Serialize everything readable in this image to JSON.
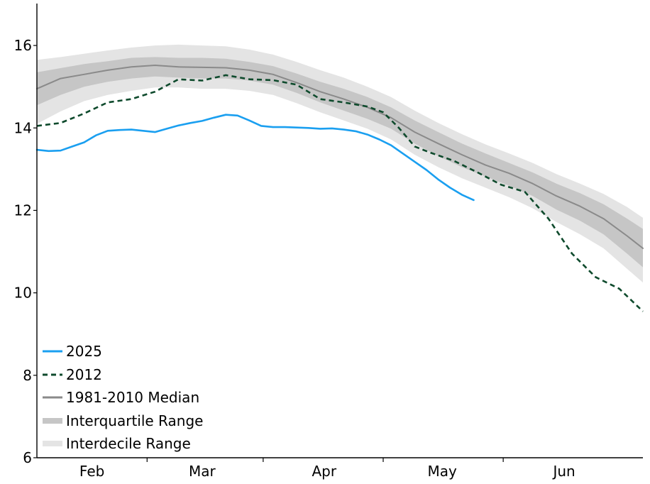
{
  "chart_data": {
    "type": "line",
    "title": "",
    "xlabel": "",
    "ylabel": "",
    "xlim": [
      0,
      154
    ],
    "ylim": [
      6,
      17
    ],
    "grid": false,
    "legend_position": "bottom-left",
    "x_ticks": [
      {
        "label": "Feb",
        "value": 14
      },
      {
        "label": "Mar",
        "value": 42
      },
      {
        "label": "Apr",
        "value": 73
      },
      {
        "label": "May",
        "value": 103
      },
      {
        "label": "Jun",
        "value": 134
      }
    ],
    "y_ticks": [
      6,
      8,
      10,
      12,
      14,
      16
    ],
    "colors": {
      "2025": "#1a9ff0",
      "2012": "#0e4a2c",
      "median": "#8a8a8a",
      "interquartile": "#c6c6c6",
      "interdecile": "#e4e4e4"
    },
    "series": [
      {
        "name": "2025",
        "style": "solid",
        "x": [
          0,
          3,
          6,
          9,
          12,
          15,
          18,
          21,
          24,
          27,
          30,
          33,
          36,
          39,
          42,
          45,
          48,
          51,
          54,
          57,
          60,
          63,
          66,
          69,
          72,
          75,
          78,
          81,
          84,
          87,
          90,
          93,
          96,
          99,
          102,
          105,
          108,
          111
        ],
        "y": [
          13.47,
          13.44,
          13.45,
          13.55,
          13.65,
          13.82,
          13.93,
          13.95,
          13.96,
          13.93,
          13.9,
          13.98,
          14.06,
          14.12,
          14.17,
          14.25,
          14.32,
          14.3,
          14.18,
          14.05,
          14.02,
          14.02,
          14.01,
          14.0,
          13.98,
          13.99,
          13.96,
          13.92,
          13.84,
          13.72,
          13.58,
          13.38,
          13.18,
          12.98,
          12.75,
          12.55,
          12.38,
          12.25
        ]
      },
      {
        "name": "2012",
        "style": "dashed",
        "x": [
          0,
          6,
          12,
          18,
          24,
          30,
          36,
          42,
          48,
          54,
          60,
          66,
          72,
          78,
          84,
          88,
          92,
          96,
          100,
          106,
          112,
          118,
          124,
          130,
          136,
          142,
          148,
          154
        ],
        "y": [
          14.05,
          14.12,
          14.35,
          14.62,
          14.7,
          14.88,
          15.18,
          15.15,
          15.28,
          15.18,
          15.16,
          15.05,
          14.7,
          14.62,
          14.52,
          14.38,
          14.0,
          13.55,
          13.4,
          13.2,
          12.92,
          12.62,
          12.45,
          11.8,
          10.95,
          10.38,
          10.1,
          9.55
        ]
      },
      {
        "name": "1981-2010 Median",
        "style": "solid",
        "x": [
          0,
          6,
          12,
          18,
          24,
          30,
          36,
          42,
          48,
          54,
          60,
          66,
          72,
          78,
          84,
          90,
          96,
          102,
          108,
          114,
          120,
          126,
          132,
          138,
          144,
          150,
          154
        ],
        "y": [
          14.95,
          15.2,
          15.3,
          15.4,
          15.48,
          15.52,
          15.48,
          15.47,
          15.46,
          15.4,
          15.3,
          15.1,
          14.88,
          14.7,
          14.5,
          14.25,
          13.9,
          13.62,
          13.35,
          13.1,
          12.9,
          12.65,
          12.35,
          12.1,
          11.8,
          11.38,
          11.08
        ]
      }
    ],
    "bands": [
      {
        "name": "Interquartile Range",
        "x": [
          0,
          6,
          12,
          18,
          24,
          30,
          36,
          42,
          48,
          54,
          60,
          66,
          72,
          78,
          84,
          90,
          96,
          102,
          108,
          114,
          120,
          126,
          132,
          138,
          144,
          150,
          154
        ],
        "upper": [
          15.35,
          15.45,
          15.55,
          15.62,
          15.7,
          15.72,
          15.7,
          15.7,
          15.68,
          15.6,
          15.5,
          15.32,
          15.12,
          14.95,
          14.75,
          14.5,
          14.18,
          13.9,
          13.62,
          13.38,
          13.15,
          12.92,
          12.65,
          12.42,
          12.15,
          11.8,
          11.55
        ],
        "lower": [
          14.55,
          14.8,
          15.0,
          15.12,
          15.2,
          15.25,
          15.22,
          15.2,
          15.2,
          15.15,
          15.05,
          14.85,
          14.62,
          14.42,
          14.22,
          13.98,
          13.62,
          13.32,
          13.05,
          12.82,
          12.6,
          12.35,
          12.02,
          11.75,
          11.42,
          10.95,
          10.62
        ]
      },
      {
        "name": "Interdecile Range",
        "x": [
          0,
          6,
          12,
          18,
          24,
          30,
          36,
          42,
          48,
          54,
          60,
          66,
          72,
          78,
          84,
          90,
          96,
          102,
          108,
          114,
          120,
          126,
          132,
          138,
          144,
          150,
          154
        ],
        "upper": [
          15.65,
          15.72,
          15.8,
          15.88,
          15.95,
          16.0,
          16.02,
          16.0,
          15.98,
          15.9,
          15.78,
          15.6,
          15.4,
          15.22,
          15.0,
          14.75,
          14.42,
          14.12,
          13.85,
          13.6,
          13.38,
          13.15,
          12.88,
          12.65,
          12.4,
          12.08,
          11.82
        ],
        "lower": [
          14.1,
          14.4,
          14.65,
          14.8,
          14.9,
          14.98,
          14.98,
          14.95,
          14.95,
          14.9,
          14.8,
          14.6,
          14.38,
          14.18,
          13.98,
          13.72,
          13.35,
          13.05,
          12.78,
          12.55,
          12.32,
          12.05,
          11.72,
          11.42,
          11.08,
          10.58,
          10.25
        ]
      }
    ],
    "legend": [
      {
        "label": "2025",
        "kind": "solid",
        "color": "#1a9ff0"
      },
      {
        "label": "2012",
        "kind": "dashed",
        "color": "#0e4a2c"
      },
      {
        "label": "1981-2010 Median",
        "kind": "solid",
        "color": "#8a8a8a"
      },
      {
        "label": "Interquartile Range",
        "kind": "band",
        "color": "#c6c6c6"
      },
      {
        "label": "Interdecile Range",
        "kind": "band",
        "color": "#e4e4e4"
      }
    ]
  }
}
